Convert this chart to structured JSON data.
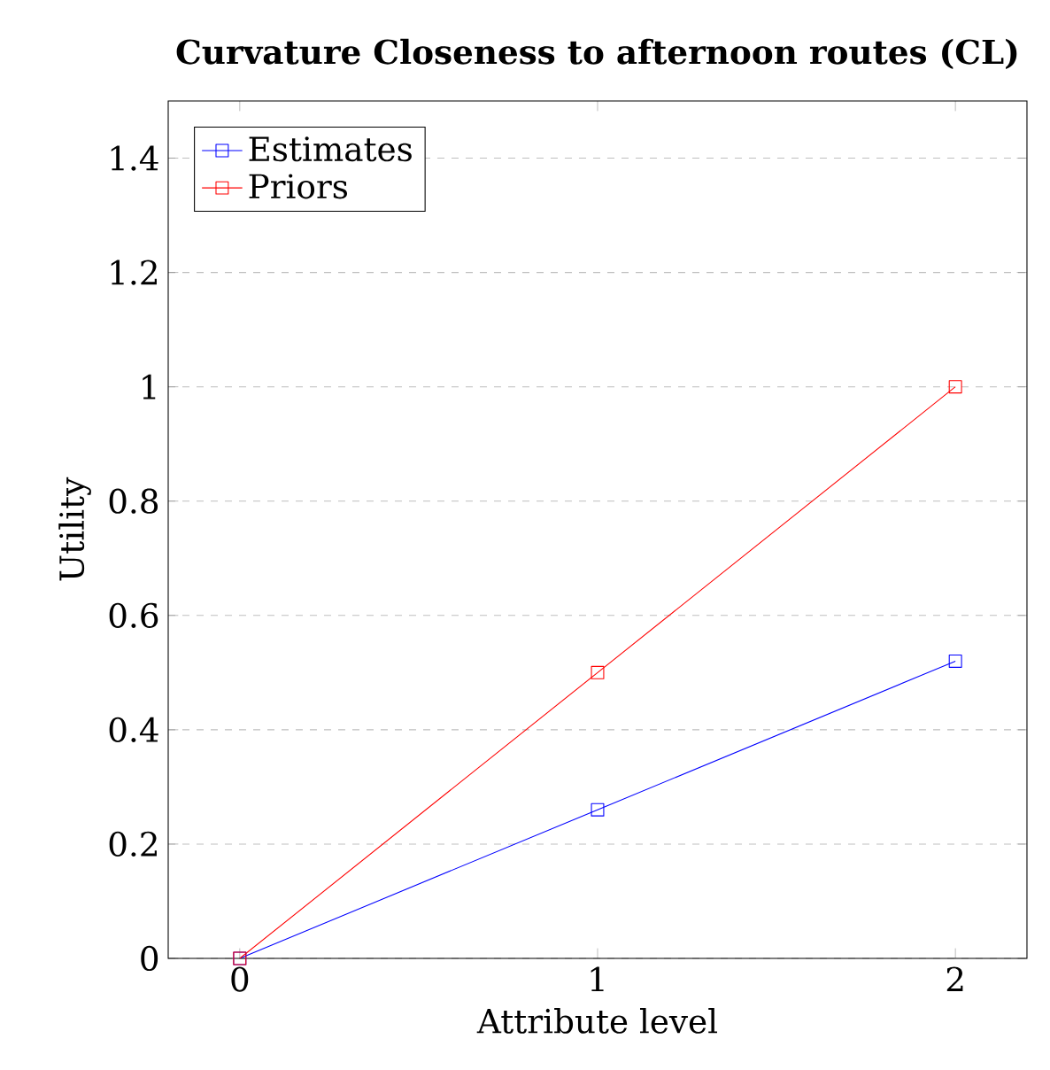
{
  "chart_data": {
    "type": "line",
    "title": "Curvature Closeness to afternoon routes (CL)",
    "xlabel": "Attribute level",
    "ylabel": "Utility",
    "x": [
      0,
      1,
      2
    ],
    "series": [
      {
        "name": "Estimates",
        "color": "#0000ff",
        "values": [
          0,
          0.26,
          0.52
        ]
      },
      {
        "name": "Priors",
        "color": "#ff0000",
        "values": [
          0,
          0.5,
          1
        ]
      }
    ],
    "xlim": [
      -0.2,
      2.2
    ],
    "ylim": [
      0,
      1.5
    ],
    "xticks": [
      0,
      1,
      2
    ],
    "yticks": [
      0,
      0.2,
      0.4,
      0.6,
      0.8,
      1,
      1.2,
      1.4
    ],
    "grid": "y",
    "legend": "top left",
    "marker": "square",
    "line_style": "solid"
  }
}
